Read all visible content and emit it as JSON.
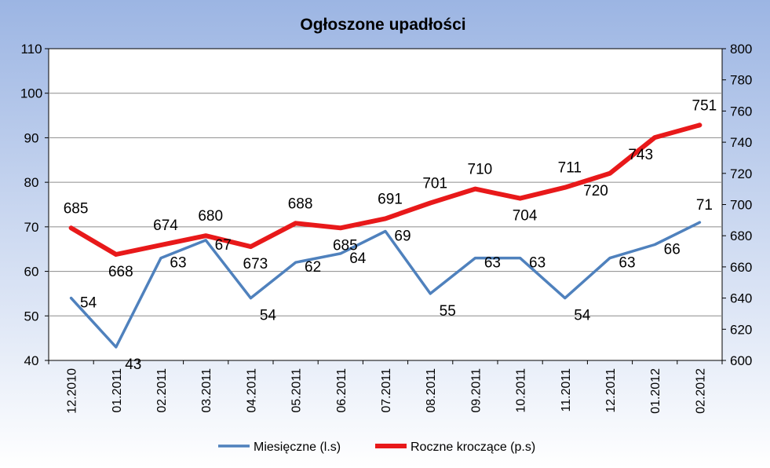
{
  "chart_data": {
    "type": "line",
    "title": "Ogłoszone upadłości",
    "categories": [
      "12.2010",
      "01.2011",
      "02.2011",
      "03.2011",
      "04.2011",
      "05.2011",
      "06.2011",
      "07.2011",
      "08.2011",
      "09.2011",
      "10.2011",
      "11.2011",
      "12.2011",
      "01.2012",
      "02.2012"
    ],
    "series": [
      {
        "name": "Miesięczne (l.s)",
        "axis": "left",
        "color": "#4F81BD",
        "values": [
          54,
          43,
          63,
          67,
          54,
          62,
          64,
          69,
          55,
          63,
          63,
          54,
          63,
          66,
          71
        ]
      },
      {
        "name": "Roczne kroczące (p.s)",
        "axis": "right",
        "color": "#E8191A",
        "values": [
          685,
          668,
          674,
          680,
          673,
          688,
          685,
          691,
          701,
          710,
          704,
          711,
          720,
          743,
          751
        ]
      }
    ],
    "y_left": {
      "min": 40,
      "max": 110,
      "step": 10,
      "ticks": [
        "40",
        "50",
        "60",
        "70",
        "80",
        "90",
        "100",
        "110"
      ]
    },
    "y_right": {
      "min": 600,
      "max": 800,
      "step": 20,
      "ticks": [
        "600",
        "620",
        "640",
        "660",
        "680",
        "700",
        "720",
        "740",
        "760",
        "780",
        "800"
      ]
    },
    "grid": true,
    "legend_position": "bottom",
    "background_top": "#9CB5E3",
    "background_bottom": "#FFFFFF"
  }
}
